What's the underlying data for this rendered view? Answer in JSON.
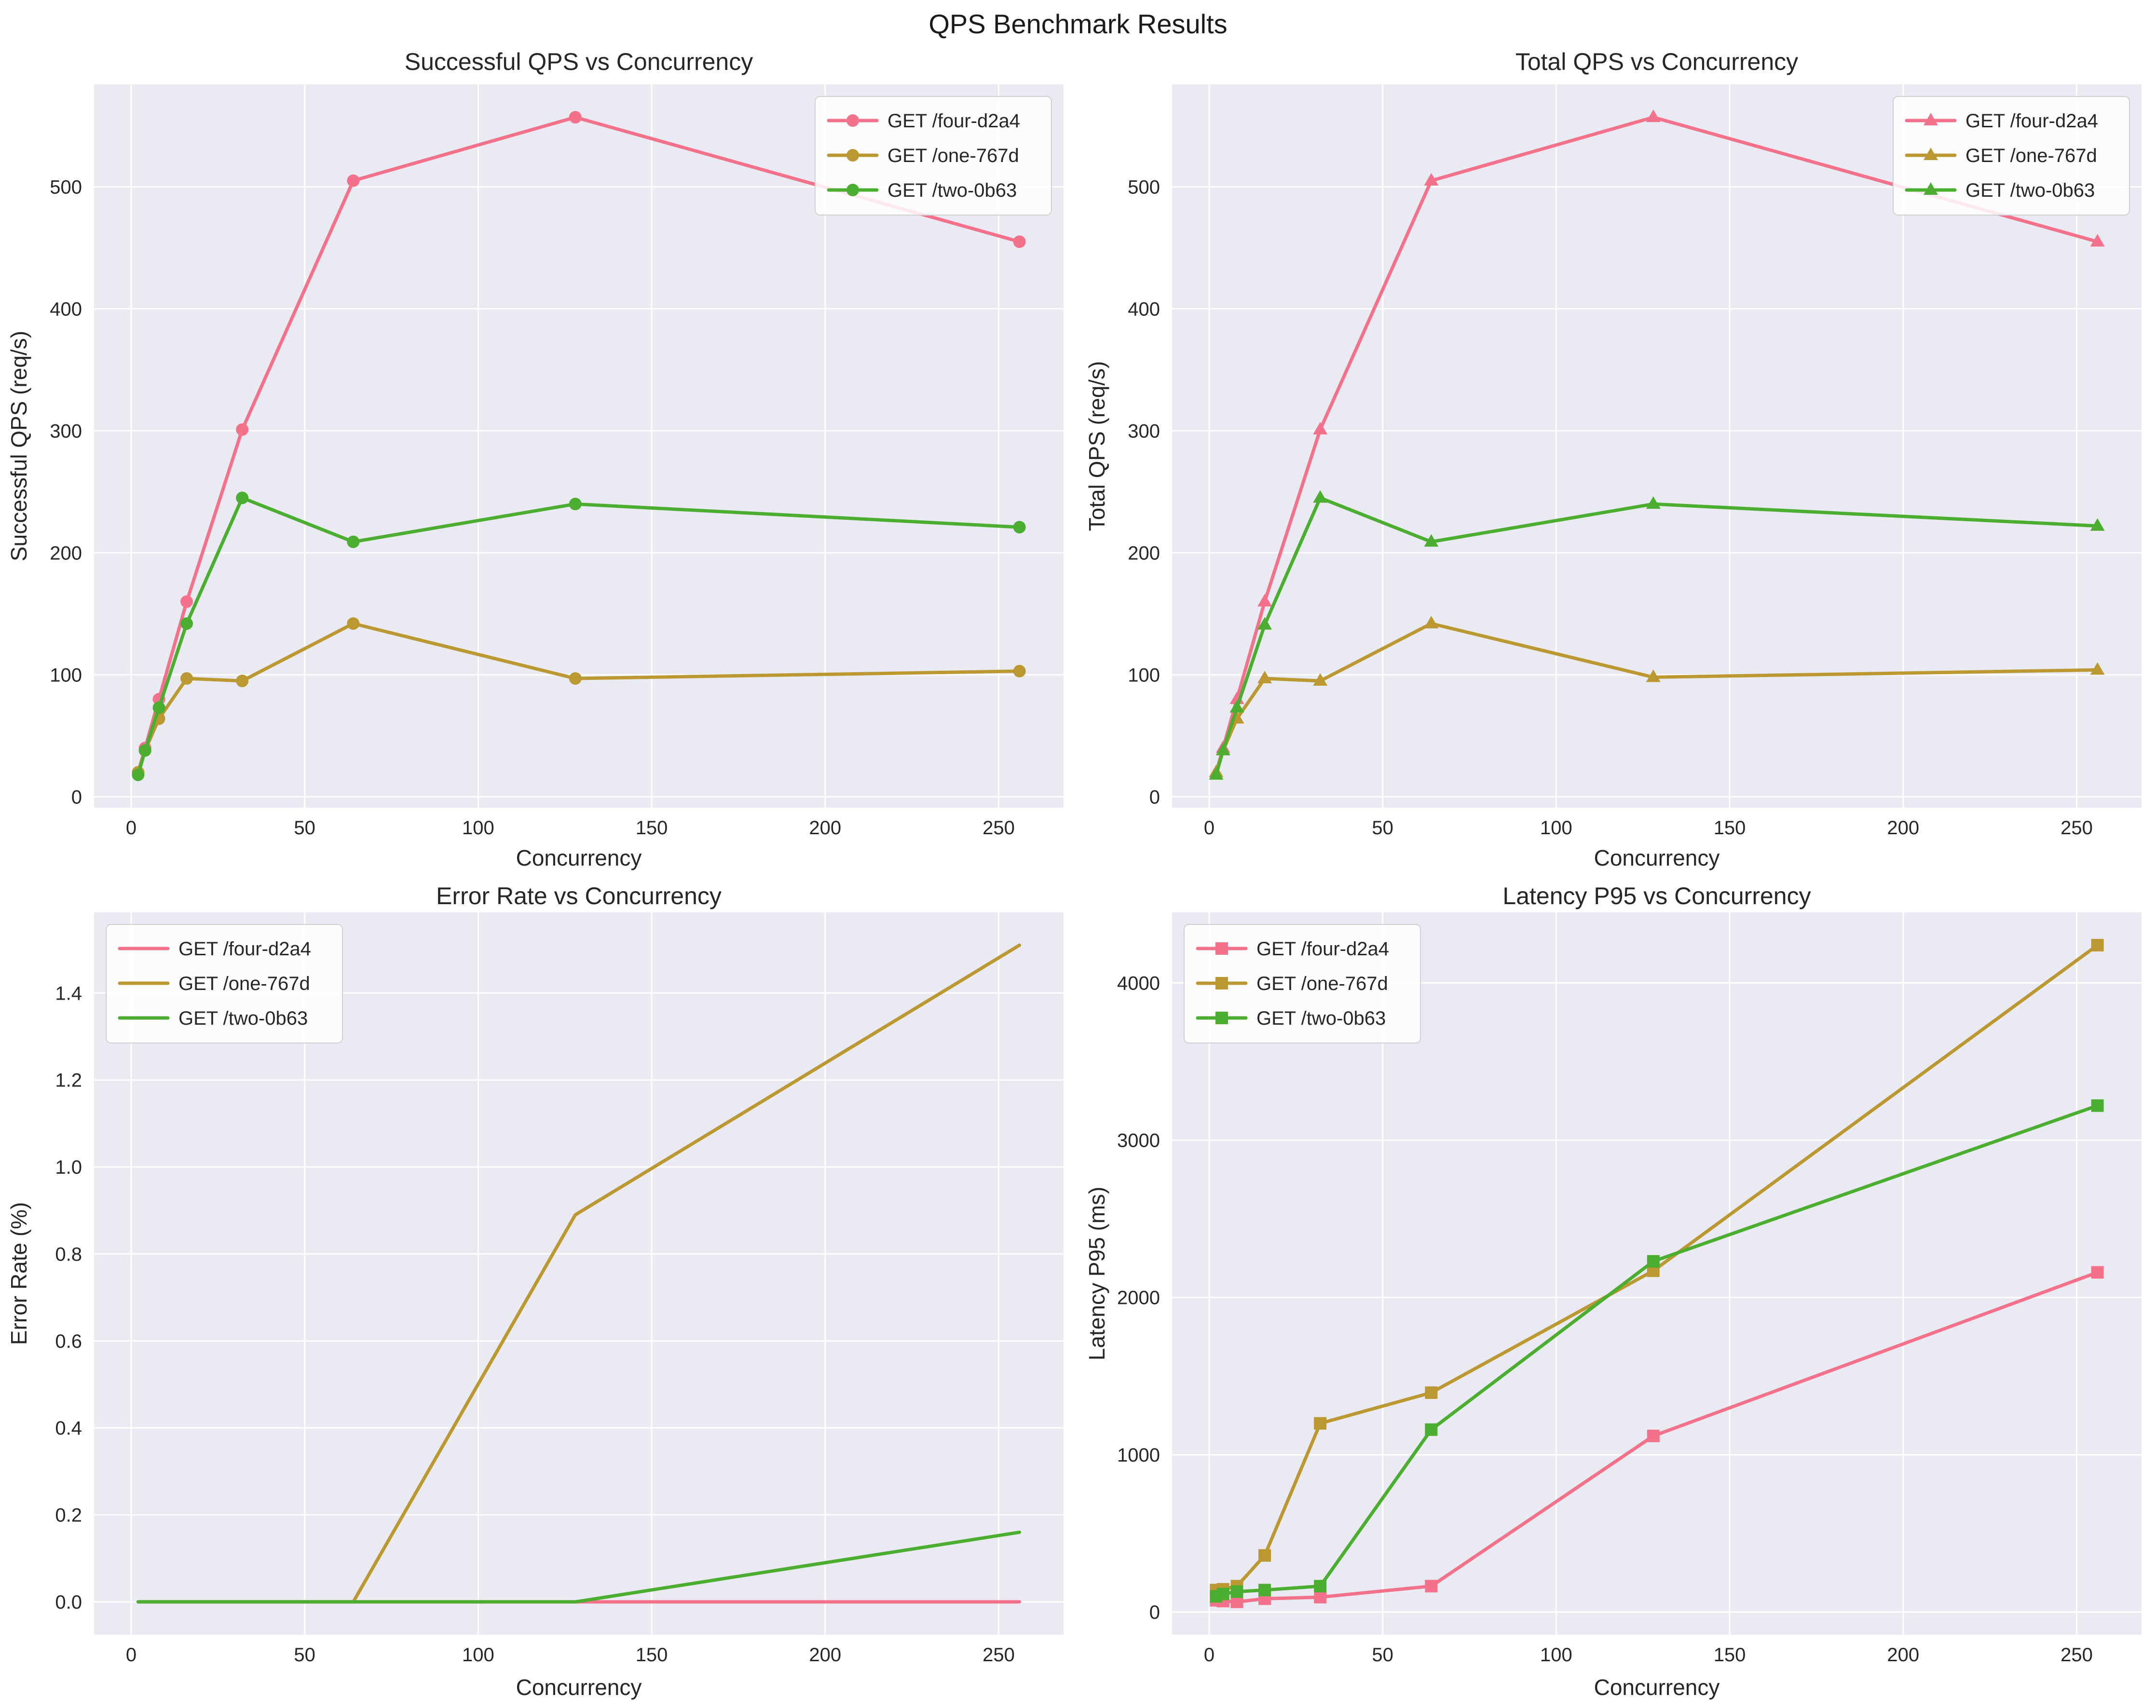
{
  "title": "QPS Benchmark Results",
  "concurrency_levels": [
    2,
    4,
    8,
    16,
    32,
    64,
    128,
    256
  ],
  "series_names": [
    "GET /four-d2a4",
    "GET /one-767d",
    "GET /two-0b63"
  ],
  "palette": {
    "four_d2a4": "#f4718b",
    "one_767d": "#bb9832",
    "two_0b63": "#4cae31",
    "plot_background": "#eaeaf2",
    "gridline": "#ffffff",
    "text": "#262626"
  },
  "chart_data": [
    {
      "type": "line",
      "title": "Successful QPS vs Concurrency",
      "xlabel": "Concurrency",
      "ylabel": "Successful QPS (req/s)",
      "x": [
        2,
        4,
        8,
        16,
        32,
        64,
        128,
        256
      ],
      "series": [
        {
          "name": "GET /four-d2a4",
          "color": "#f4718b",
          "marker": "circle",
          "values": [
            20,
            40,
            80,
            160,
            301,
            505,
            557,
            455
          ]
        },
        {
          "name": "GET /one-767d",
          "color": "#bb9832",
          "marker": "circle",
          "values": [
            20,
            38,
            64,
            97,
            95,
            142,
            97,
            103
          ]
        },
        {
          "name": "GET /two-0b63",
          "color": "#4cae31",
          "marker": "circle",
          "values": [
            18,
            38,
            73,
            142,
            245,
            209,
            240,
            221
          ]
        }
      ],
      "xlim": [
        -10.7,
        268.7
      ],
      "ylim": [
        -8.95,
        583.95
      ],
      "xticks": [
        0,
        50,
        100,
        150,
        200,
        250
      ],
      "xtick_labels": [
        "0",
        "50",
        "100",
        "150",
        "200",
        "250"
      ],
      "yticks": [
        0,
        100,
        200,
        300,
        400,
        500
      ],
      "ytick_labels": [
        "0",
        "100",
        "200",
        "300",
        "400",
        "500"
      ],
      "legend_position": "upper-right",
      "grid": true
    },
    {
      "type": "line",
      "title": "Total QPS vs Concurrency",
      "xlabel": "Concurrency",
      "ylabel": "Total QPS (req/s)",
      "x": [
        2,
        4,
        8,
        16,
        32,
        64,
        128,
        256
      ],
      "series": [
        {
          "name": "GET /four-d2a4",
          "color": "#f4718b",
          "marker": "triangle",
          "values": [
            20,
            40,
            80,
            160,
            301,
            505,
            557,
            455
          ]
        },
        {
          "name": "GET /one-767d",
          "color": "#bb9832",
          "marker": "triangle",
          "values": [
            20,
            38,
            64,
            97,
            95,
            142,
            98,
            104
          ]
        },
        {
          "name": "GET /two-0b63",
          "color": "#4cae31",
          "marker": "triangle",
          "values": [
            18,
            38,
            73,
            141,
            245,
            209,
            240,
            222
          ]
        }
      ],
      "xlim": [
        -10.7,
        268.7
      ],
      "ylim": [
        -8.95,
        583.95
      ],
      "xticks": [
        0,
        50,
        100,
        150,
        200,
        250
      ],
      "xtick_labels": [
        "0",
        "50",
        "100",
        "150",
        "200",
        "250"
      ],
      "yticks": [
        0,
        100,
        200,
        300,
        400,
        500
      ],
      "ytick_labels": [
        "0",
        "100",
        "200",
        "300",
        "400",
        "500"
      ],
      "legend_position": "upper-right",
      "grid": true
    },
    {
      "type": "line",
      "title": "Error Rate vs Concurrency",
      "xlabel": "Concurrency",
      "ylabel": "Error Rate (%)",
      "x": [
        2,
        4,
        8,
        16,
        32,
        64,
        128,
        256
      ],
      "series": [
        {
          "name": "GET /four-d2a4",
          "color": "#f4718b",
          "marker": "none",
          "values": [
            0,
            0,
            0,
            0,
            0,
            0,
            0,
            0
          ]
        },
        {
          "name": "GET /one-767d",
          "color": "#bb9832",
          "marker": "none",
          "values": [
            0,
            0,
            0,
            0,
            0,
            0,
            0.89,
            1.51
          ]
        },
        {
          "name": "GET /two-0b63",
          "color": "#4cae31",
          "marker": "none",
          "values": [
            0,
            0,
            0,
            0,
            0,
            0,
            0,
            0.16
          ]
        }
      ],
      "xlim": [
        -10.7,
        268.7
      ],
      "ylim": [
        -0.0755,
        1.5855
      ],
      "xticks": [
        0,
        50,
        100,
        150,
        200,
        250
      ],
      "xtick_labels": [
        "0",
        "50",
        "100",
        "150",
        "200",
        "250"
      ],
      "yticks": [
        0,
        0.2,
        0.4,
        0.6,
        0.8,
        1.0,
        1.2,
        1.4
      ],
      "ytick_labels": [
        "0.0",
        "0.2",
        "0.4",
        "0.6",
        "0.8",
        "1.0",
        "1.2",
        "1.4"
      ],
      "legend_position": "upper-left",
      "grid": true
    },
    {
      "type": "line",
      "title": "Latency P95 vs Concurrency",
      "xlabel": "Concurrency",
      "ylabel": "Latency P95 (ms)",
      "x": [
        2,
        4,
        8,
        16,
        32,
        64,
        128,
        256
      ],
      "series": [
        {
          "name": "GET /four-d2a4",
          "color": "#f4718b",
          "marker": "square",
          "values": [
            75,
            70,
            65,
            85,
            95,
            165,
            1120,
            2160
          ]
        },
        {
          "name": "GET /one-767d",
          "color": "#bb9832",
          "marker": "square",
          "values": [
            140,
            145,
            165,
            360,
            1200,
            1395,
            2170,
            4240
          ]
        },
        {
          "name": "GET /two-0b63",
          "color": "#4cae31",
          "marker": "square",
          "values": [
            100,
            115,
            130,
            140,
            165,
            1160,
            2230,
            3220
          ]
        }
      ],
      "xlim": [
        -10.7,
        268.7
      ],
      "ylim": [
        -143.75,
        4448.75
      ],
      "xticks": [
        0,
        50,
        100,
        150,
        200,
        250
      ],
      "xtick_labels": [
        "0",
        "50",
        "100",
        "150",
        "200",
        "250"
      ],
      "yticks": [
        0,
        1000,
        2000,
        3000,
        4000
      ],
      "ytick_labels": [
        "0",
        "1000",
        "2000",
        "3000",
        "4000"
      ],
      "legend_position": "upper-left",
      "grid": true
    }
  ]
}
